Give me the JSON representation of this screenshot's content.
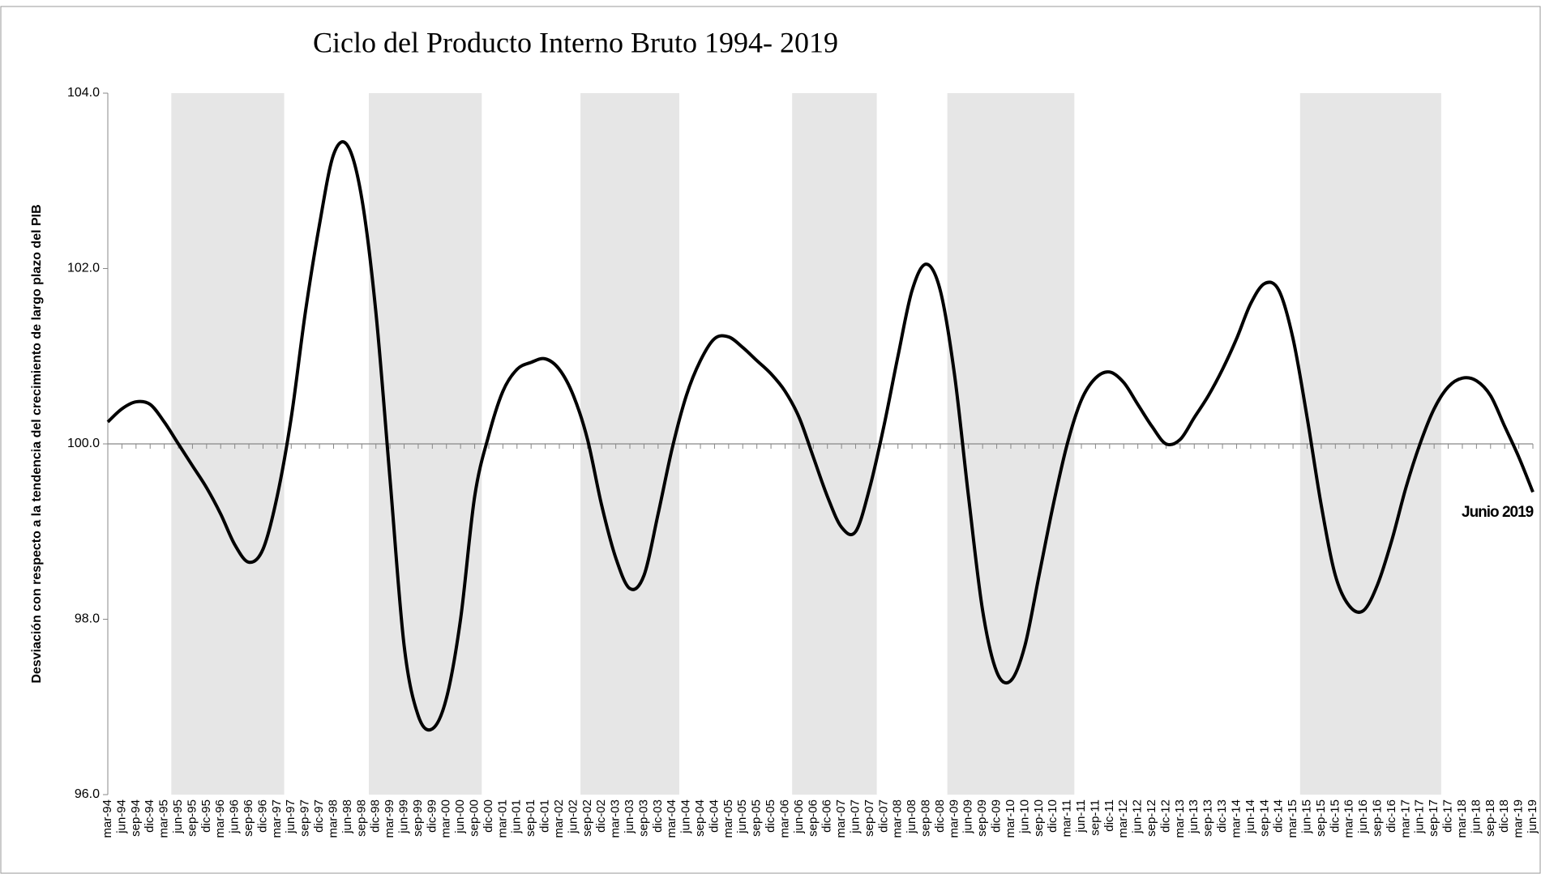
{
  "chart_data": {
    "type": "line",
    "title": "Ciclo del Producto Interno Bruto 1994- 2019",
    "y_label": "Desviación  con respecto a  la tendencia  del crecimiento de largo plazo del PIB",
    "annotation": "Junio 2019",
    "categories": [
      "mar-94",
      "jun-94",
      "sep-94",
      "dic-94",
      "mar-95",
      "jun-95",
      "sep-95",
      "dic-95",
      "mar-96",
      "jun-96",
      "sep-96",
      "dic-96",
      "mar-97",
      "jun-97",
      "sep-97",
      "dic-97",
      "mar-98",
      "jun-98",
      "sep-98",
      "dic-98",
      "mar-99",
      "jun-99",
      "sep-99",
      "dic-99",
      "mar-00",
      "jun-00",
      "sep-00",
      "dic-00",
      "mar-01",
      "jun-01",
      "sep-01",
      "dic-01",
      "mar-02",
      "jun-02",
      "sep-02",
      "dic-02",
      "mar-03",
      "jun-03",
      "sep-03",
      "dic-03",
      "mar-04",
      "jun-04",
      "sep-04",
      "dic-04",
      "mar-05",
      "jun-05",
      "sep-05",
      "dic-05",
      "mar-06",
      "jun-06",
      "sep-06",
      "dic-06",
      "mar-07",
      "jun-07",
      "sep-07",
      "dic-07",
      "mar-08",
      "jun-08",
      "sep-08",
      "dic-08",
      "mar-09",
      "jun-09",
      "sep-09",
      "dic-09",
      "mar-10",
      "jun-10",
      "sep-10",
      "dic-10",
      "mar-11",
      "jun-11",
      "sep-11",
      "dic-11",
      "mar-12",
      "jun-12",
      "sep-12",
      "dic-12",
      "mar-13",
      "jun-13",
      "sep-13",
      "dic-13",
      "mar-14",
      "jun-14",
      "sep-14",
      "dic-14",
      "mar-15",
      "jun-15",
      "sep-15",
      "dic-15",
      "mar-16",
      "jun-16",
      "sep-16",
      "dic-16",
      "mar-17",
      "jun-17",
      "sep-17",
      "dic-17",
      "mar-18",
      "jun-18",
      "sep-18",
      "dic-18",
      "mar-19",
      "jun-19"
    ],
    "series": [
      {
        "color": "#000000",
        "values": [
          100.25,
          100.4,
          100.48,
          100.45,
          100.25,
          100.0,
          99.75,
          99.5,
          99.2,
          98.85,
          98.65,
          98.8,
          99.4,
          100.3,
          101.5,
          102.5,
          103.3,
          103.4,
          102.8,
          101.5,
          99.6,
          97.7,
          96.9,
          96.75,
          97.1,
          98.0,
          99.4,
          100.1,
          100.6,
          100.85,
          100.93,
          100.97,
          100.85,
          100.55,
          100.05,
          99.3,
          98.7,
          98.35,
          98.5,
          99.2,
          99.95,
          100.55,
          100.95,
          101.2,
          101.22,
          101.1,
          100.95,
          100.8,
          100.6,
          100.3,
          99.85,
          99.4,
          99.05,
          99.0,
          99.5,
          100.2,
          101.0,
          101.75,
          102.05,
          101.75,
          100.8,
          99.4,
          98.1,
          97.4,
          97.3,
          97.7,
          98.5,
          99.3,
          100.0,
          100.5,
          100.75,
          100.82,
          100.7,
          100.45,
          100.2,
          100.0,
          100.05,
          100.3,
          100.55,
          100.85,
          101.2,
          101.6,
          101.83,
          101.75,
          101.2,
          100.3,
          99.3,
          98.5,
          98.15,
          98.1,
          98.4,
          98.9,
          99.5,
          100.0,
          100.4,
          100.65,
          100.75,
          100.72,
          100.55,
          100.2,
          99.85,
          99.45
        ]
      }
    ],
    "shaded_periods": [
      {
        "start": "jun-95",
        "end": "mar-97"
      },
      {
        "start": "dic-98",
        "end": "sep-00"
      },
      {
        "start": "sep-02",
        "end": "mar-04"
      },
      {
        "start": "jun-06",
        "end": "sep-07"
      },
      {
        "start": "mar-09",
        "end": "mar-11"
      },
      {
        "start": "jun-15",
        "end": "sep-17"
      }
    ],
    "shade_color": "#e6e6e6",
    "ylim": [
      96,
      104
    ],
    "yticks": [
      {
        "value": 96,
        "label": "96.0"
      },
      {
        "value": 98,
        "label": "98.0"
      },
      {
        "value": 100,
        "label": "100.0"
      },
      {
        "value": 102,
        "label": "102.0"
      },
      {
        "value": 104,
        "label": "104.0"
      }
    ],
    "baseline": 100
  }
}
